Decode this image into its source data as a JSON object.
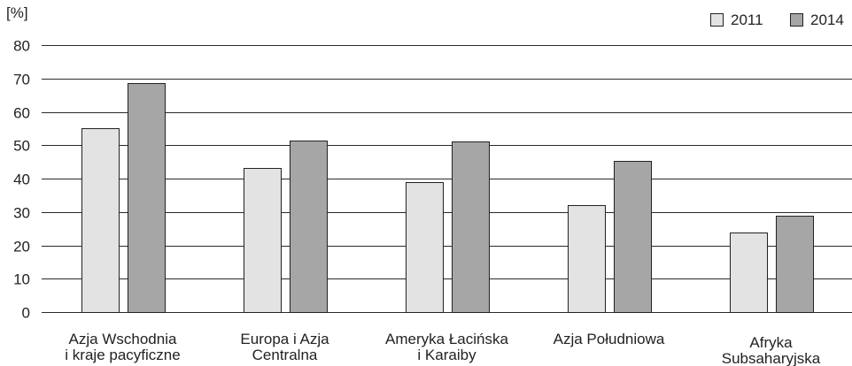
{
  "chart_data": {
    "type": "bar",
    "ylabel": "[%]",
    "ylim": [
      0,
      80
    ],
    "yticks": [
      0,
      10,
      20,
      30,
      40,
      50,
      60,
      70,
      80
    ],
    "grid": true,
    "legend_position": "top-right",
    "categories": [
      [
        "Azja Wschodnia",
        "i kraje pacyficzne"
      ],
      [
        "Europa i Azja",
        "Centralna"
      ],
      [
        "Ameryka Łacińska",
        "i Karaiby"
      ],
      [
        "Azja Południowa"
      ],
      [
        "Afryka",
        "Subsaharyjska"
      ]
    ],
    "series": [
      {
        "name": "2011",
        "color": "#e3e3e3",
        "values": [
          55,
          43.2,
          38.9,
          32.1,
          23.8
        ]
      },
      {
        "name": "2014",
        "color": "#a6a6a6",
        "values": [
          68.7,
          51.4,
          51.1,
          45.3,
          28.9
        ]
      }
    ]
  }
}
